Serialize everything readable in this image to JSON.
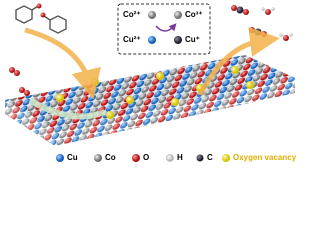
{
  "inset": {
    "co_left": "Co²⁺",
    "co_right": "Co³⁺",
    "cu_left": "Cu²⁺",
    "cu_right": "Cu⁺"
  },
  "legend": [
    "Cu",
    "Co",
    "O",
    "H",
    "C",
    "Oxygen vacancy"
  ]
}
